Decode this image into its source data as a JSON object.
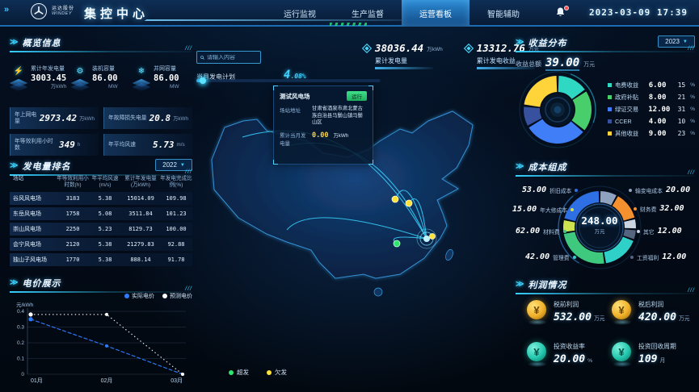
{
  "header": {
    "company": "运达股份",
    "company_en": "WINDEY",
    "title": "集控中心",
    "nav": [
      {
        "label": "运行监视",
        "active": false
      },
      {
        "label": "生产监督",
        "active": false
      },
      {
        "label": "运营看板",
        "active": true
      },
      {
        "label": "智能辅助",
        "active": false
      }
    ],
    "datetime": "2023-03-09 17:39"
  },
  "overview": {
    "title": "概览信息",
    "stats": [
      {
        "label": "累计年发电量",
        "value": "3003.45",
        "unit": "万kWh",
        "icon": "power-icon",
        "glyph": "⚡"
      },
      {
        "label": "装机容量",
        "value": "86.00",
        "unit": "MW",
        "icon": "turbine-icon",
        "glyph": "⚙"
      },
      {
        "label": "并网容量",
        "value": "86.00",
        "unit": "MW",
        "icon": "grid-icon",
        "glyph": "❄"
      }
    ],
    "metrics": [
      {
        "label": "年上网电量",
        "value": "2973.42",
        "unit": "万kWh"
      },
      {
        "label": "年故障损失电量",
        "value": "20.8",
        "unit": "万kWh"
      },
      {
        "label": "年等效利用小时数",
        "value": "349",
        "unit": "h"
      },
      {
        "label": "年平均风速",
        "value": "5.73",
        "unit": "m/s"
      }
    ]
  },
  "ranking": {
    "title": "发电量排名",
    "year": "2022",
    "columns": [
      "场站",
      "年等效利用小时数(h)",
      "年平均风速(m/s)",
      "累计年发电量(万kWh)",
      "年发电完成比例(%)"
    ],
    "rows": [
      [
        "谷风风电场",
        "3183",
        "5.38",
        "15014.09",
        "109.98"
      ],
      [
        "东岳风电场",
        "1758",
        "5.08",
        "3511.84",
        "101.23"
      ],
      [
        "崇山风电场",
        "2250",
        "5.23",
        "8129.73",
        "100.00"
      ],
      [
        "会宁风电场",
        "2120",
        "5.38",
        "21279.83",
        "92.88"
      ],
      [
        "独山子风电场",
        "1770",
        "5.38",
        "888.14",
        "91.78"
      ]
    ]
  },
  "price_section": {
    "title": "电价展示",
    "ylabel": "元/kWh"
  },
  "map": {
    "search_placeholder": "请输入内容",
    "plan_label": "当月发电计划",
    "plan_value_big": "4",
    "plan_value_small": ".08%",
    "plan_percent": 4.08,
    "stats": [
      {
        "value": "38036.44",
        "unit": "万kWh",
        "label": "累计发电量"
      },
      {
        "value": "13312.76",
        "unit": "万元",
        "label": "累计发电收益"
      }
    ],
    "tooltip": {
      "name": "测试风电场",
      "badge": "运行",
      "address_label": "场站地址",
      "address": "甘肃省酒泉市肃北蒙古族自治县马鬃山镇马鬃山区",
      "energy_label": "累计当月发电量",
      "energy_value": "0.00",
      "energy_unit": "万kWh"
    },
    "legend": [
      {
        "label": "超发",
        "color": "#2ee56e"
      },
      {
        "label": "欠发",
        "color": "#ffe23a"
      }
    ]
  },
  "revenue": {
    "title": "收益分布",
    "year": "2023",
    "total_label": "收益总额",
    "total_value": "39.00",
    "total_unit": "万元",
    "percent_unit": "%"
  },
  "cost": {
    "title": "成本组成",
    "center_value": "248.00",
    "center_unit": "万元"
  },
  "profit": {
    "title": "利润情况",
    "items": [
      {
        "label": "税前利润",
        "value": "532.00",
        "unit": "万元",
        "style": "gold"
      },
      {
        "label": "税后利润",
        "value": "420.00",
        "unit": "万元",
        "style": "gold"
      },
      {
        "label": "投资收益率",
        "value": "20.00",
        "unit": "%",
        "style": "teal"
      },
      {
        "label": "投资回收周期",
        "value": "109",
        "unit": "月",
        "style": "teal"
      }
    ]
  },
  "chart_data": [
    {
      "id": "price",
      "type": "line",
      "title": "电价展示",
      "ylabel": "元/kWh",
      "x": [
        "01月",
        "02月",
        "03月"
      ],
      "yticks": [
        0,
        0.1,
        0.2,
        0.3,
        0.4
      ],
      "ylim": [
        0,
        0.4
      ],
      "grid": true,
      "legend_position": "top-right",
      "series": [
        {
          "name": "实际电价",
          "color": "#2e7bff",
          "style": "dashed",
          "values": [
            0.35,
            0.18,
            0
          ]
        },
        {
          "name": "预测电价",
          "color": "#ffffff",
          "style": "dotted",
          "values": [
            0.38,
            0.38,
            0
          ]
        }
      ]
    },
    {
      "id": "revenue",
      "type": "pie",
      "title": "收益分布",
      "total_label": "收益总额",
      "total": "39.00",
      "unit": "万元",
      "segments": [
        {
          "name": "电费收益",
          "value": "6.00",
          "percent": "15",
          "color": "#2ed8c3"
        },
        {
          "name": "政府补贴",
          "value": "8.00",
          "percent": "21",
          "color": "#49ce6c"
        },
        {
          "name": "绿证交易",
          "value": "12.00",
          "percent": "31",
          "color": "#3f7ef7"
        },
        {
          "name": "CCER",
          "value": "4.00",
          "percent": "10",
          "color": "#37519e"
        },
        {
          "name": "其他收益",
          "value": "9.00",
          "percent": "23",
          "color": "#ffd43b"
        }
      ]
    },
    {
      "id": "cost",
      "type": "pie",
      "title": "成本组成",
      "center_value": "248.00",
      "unit": "万元",
      "segments": [
        {
          "name": "输变电成本",
          "value": "20.00",
          "color": "#8fa3c0"
        },
        {
          "name": "财务费",
          "value": "32.00",
          "color": "#f5902f"
        },
        {
          "name": "其它",
          "value": "12.00",
          "color": "#c9d4e0"
        },
        {
          "name": "工资福利",
          "value": "12.00",
          "color": "#55657f"
        },
        {
          "name": "管理费",
          "value": "42.00",
          "color": "#2fd0c8"
        },
        {
          "name": "材料费",
          "value": "62.00",
          "color": "#3fc97e"
        },
        {
          "name": "年大修成本",
          "value": "15.00",
          "color": "#cde24e"
        },
        {
          "name": "折旧成本",
          "value": "53.00",
          "color": "#2f6fe4"
        }
      ]
    }
  ]
}
